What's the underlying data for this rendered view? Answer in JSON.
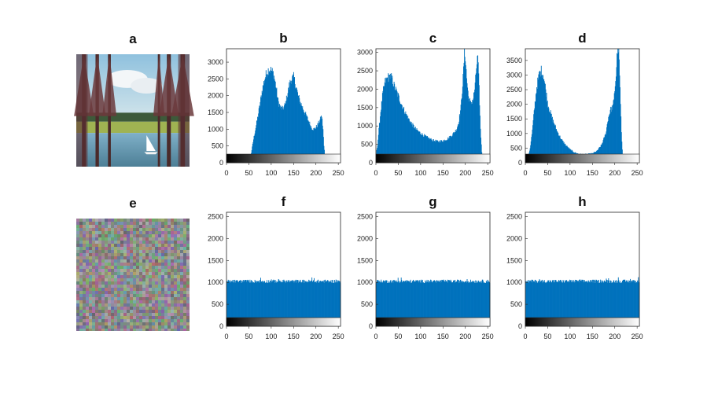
{
  "chart_data": [
    {
      "panel": "a",
      "type": "image",
      "title": "a",
      "image": "landscape photo: pine trees, lake, meadow, white sailboat, blue sky with clouds"
    },
    {
      "panel": "b",
      "type": "bar",
      "title": "b",
      "xlabel": "",
      "ylabel": "",
      "xlim": [
        0,
        255
      ],
      "ylim": [
        0,
        3400
      ],
      "xticks": [
        0,
        50,
        100,
        150,
        200,
        250
      ],
      "yticks": [
        0,
        500,
        1000,
        1500,
        2000,
        2500,
        3000
      ],
      "colorbar": "grayscale 0-255",
      "color": "#0072BD",
      "profile": [
        [
          0,
          0
        ],
        [
          10,
          0
        ],
        [
          20,
          0
        ],
        [
          30,
          0
        ],
        [
          40,
          10
        ],
        [
          45,
          40
        ],
        [
          50,
          80
        ],
        [
          55,
          300
        ],
        [
          60,
          700
        ],
        [
          65,
          1050
        ],
        [
          70,
          1400
        ],
        [
          75,
          1800
        ],
        [
          80,
          2200
        ],
        [
          85,
          2500
        ],
        [
          90,
          2700
        ],
        [
          95,
          2800
        ],
        [
          100,
          2750
        ],
        [
          105,
          2650
        ],
        [
          110,
          2300
        ],
        [
          115,
          1850
        ],
        [
          120,
          1650
        ],
        [
          125,
          1600
        ],
        [
          130,
          1700
        ],
        [
          135,
          1950
        ],
        [
          140,
          2300
        ],
        [
          145,
          2500
        ],
        [
          150,
          2550
        ],
        [
          155,
          2300
        ],
        [
          160,
          2000
        ],
        [
          165,
          1800
        ],
        [
          170,
          1650
        ],
        [
          175,
          1500
        ],
        [
          180,
          1350
        ],
        [
          185,
          1200
        ],
        [
          190,
          1050
        ],
        [
          195,
          1000
        ],
        [
          200,
          1050
        ],
        [
          205,
          1150
        ],
        [
          210,
          1300
        ],
        [
          213,
          1400
        ],
        [
          216,
          1000
        ],
        [
          218,
          500
        ],
        [
          220,
          250
        ],
        [
          225,
          60
        ],
        [
          230,
          15
        ],
        [
          240,
          0
        ],
        [
          255,
          0
        ]
      ]
    },
    {
      "panel": "c",
      "type": "bar",
      "title": "c",
      "xlabel": "",
      "ylabel": "",
      "xlim": [
        0,
        255
      ],
      "ylim": [
        0,
        3100
      ],
      "xticks": [
        0,
        50,
        100,
        150,
        200,
        250
      ],
      "yticks": [
        0,
        500,
        1000,
        1500,
        2000,
        2500,
        3000
      ],
      "colorbar": "grayscale 0-255",
      "color": "#0072BD",
      "profile": [
        [
          0,
          250
        ],
        [
          3,
          500
        ],
        [
          6,
          900
        ],
        [
          10,
          1400
        ],
        [
          15,
          1900
        ],
        [
          20,
          2200
        ],
        [
          25,
          2300
        ],
        [
          30,
          2350
        ],
        [
          35,
          2300
        ],
        [
          40,
          2100
        ],
        [
          50,
          1800
        ],
        [
          60,
          1500
        ],
        [
          70,
          1250
        ],
        [
          80,
          1050
        ],
        [
          90,
          900
        ],
        [
          100,
          800
        ],
        [
          110,
          720
        ],
        [
          120,
          650
        ],
        [
          130,
          600
        ],
        [
          140,
          580
        ],
        [
          150,
          600
        ],
        [
          160,
          650
        ],
        [
          170,
          750
        ],
        [
          180,
          900
        ],
        [
          185,
          1100
        ],
        [
          190,
          1500
        ],
        [
          195,
          2300
        ],
        [
          198,
          3000
        ],
        [
          200,
          2900
        ],
        [
          203,
          2300
        ],
        [
          207,
          1800
        ],
        [
          212,
          1600
        ],
        [
          218,
          1750
        ],
        [
          222,
          2100
        ],
        [
          225,
          2600
        ],
        [
          228,
          2900
        ],
        [
          231,
          2000
        ],
        [
          234,
          900
        ],
        [
          237,
          300
        ],
        [
          240,
          50
        ],
        [
          243,
          0
        ],
        [
          255,
          0
        ]
      ]
    },
    {
      "panel": "d",
      "type": "bar",
      "title": "d",
      "xlabel": "",
      "ylabel": "",
      "xlim": [
        0,
        255
      ],
      "ylim": [
        0,
        3900
      ],
      "xticks": [
        0,
        50,
        100,
        150,
        200,
        250
      ],
      "yticks": [
        0,
        500,
        1000,
        1500,
        2000,
        2500,
        3000,
        3500
      ],
      "colorbar": "grayscale 0-255",
      "color": "#0072BD",
      "profile": [
        [
          0,
          0
        ],
        [
          5,
          150
        ],
        [
          10,
          500
        ],
        [
          15,
          1100
        ],
        [
          20,
          1900
        ],
        [
          25,
          2600
        ],
        [
          30,
          3000
        ],
        [
          35,
          3150
        ],
        [
          40,
          3000
        ],
        [
          45,
          2500
        ],
        [
          50,
          2000
        ],
        [
          60,
          1500
        ],
        [
          70,
          1100
        ],
        [
          80,
          800
        ],
        [
          90,
          600
        ],
        [
          100,
          450
        ],
        [
          110,
          350
        ],
        [
          120,
          300
        ],
        [
          130,
          290
        ],
        [
          140,
          300
        ],
        [
          150,
          320
        ],
        [
          160,
          400
        ],
        [
          170,
          600
        ],
        [
          180,
          1000
        ],
        [
          185,
          1500
        ],
        [
          190,
          1800
        ],
        [
          195,
          1900
        ],
        [
          198,
          2100
        ],
        [
          200,
          2500
        ],
        [
          203,
          3000
        ],
        [
          206,
          3900
        ],
        [
          209,
          3900
        ],
        [
          212,
          2500
        ],
        [
          215,
          1000
        ],
        [
          218,
          200
        ],
        [
          221,
          0
        ],
        [
          255,
          0
        ]
      ]
    },
    {
      "panel": "e",
      "type": "image",
      "title": "e",
      "image": "encrypted image: uniform random colour noise"
    },
    {
      "panel": "f",
      "type": "bar",
      "title": "f",
      "xlabel": "",
      "ylabel": "",
      "xlim": [
        0,
        255
      ],
      "ylim": [
        0,
        2600
      ],
      "xticks": [
        0,
        50,
        100,
        150,
        200,
        250
      ],
      "yticks": [
        0,
        500,
        1000,
        1500,
        2000,
        2500
      ],
      "colorbar": "grayscale 0-255",
      "color": "#0072BD",
      "flat_level": 1024
    },
    {
      "panel": "g",
      "type": "bar",
      "title": "g",
      "xlabel": "",
      "ylabel": "",
      "xlim": [
        0,
        255
      ],
      "ylim": [
        0,
        2600
      ],
      "xticks": [
        0,
        50,
        100,
        150,
        200,
        250
      ],
      "yticks": [
        0,
        500,
        1000,
        1500,
        2000,
        2500
      ],
      "colorbar": "grayscale 0-255",
      "color": "#0072BD",
      "flat_level": 1024
    },
    {
      "panel": "h",
      "type": "bar",
      "title": "h",
      "xlabel": "",
      "ylabel": "",
      "xlim": [
        0,
        255
      ],
      "ylim": [
        0,
        2600
      ],
      "xticks": [
        0,
        50,
        100,
        150,
        200,
        250
      ],
      "yticks": [
        0,
        500,
        1000,
        1500,
        2000,
        2500
      ],
      "colorbar": "grayscale 0-255",
      "color": "#0072BD",
      "flat_level": 1024
    }
  ]
}
